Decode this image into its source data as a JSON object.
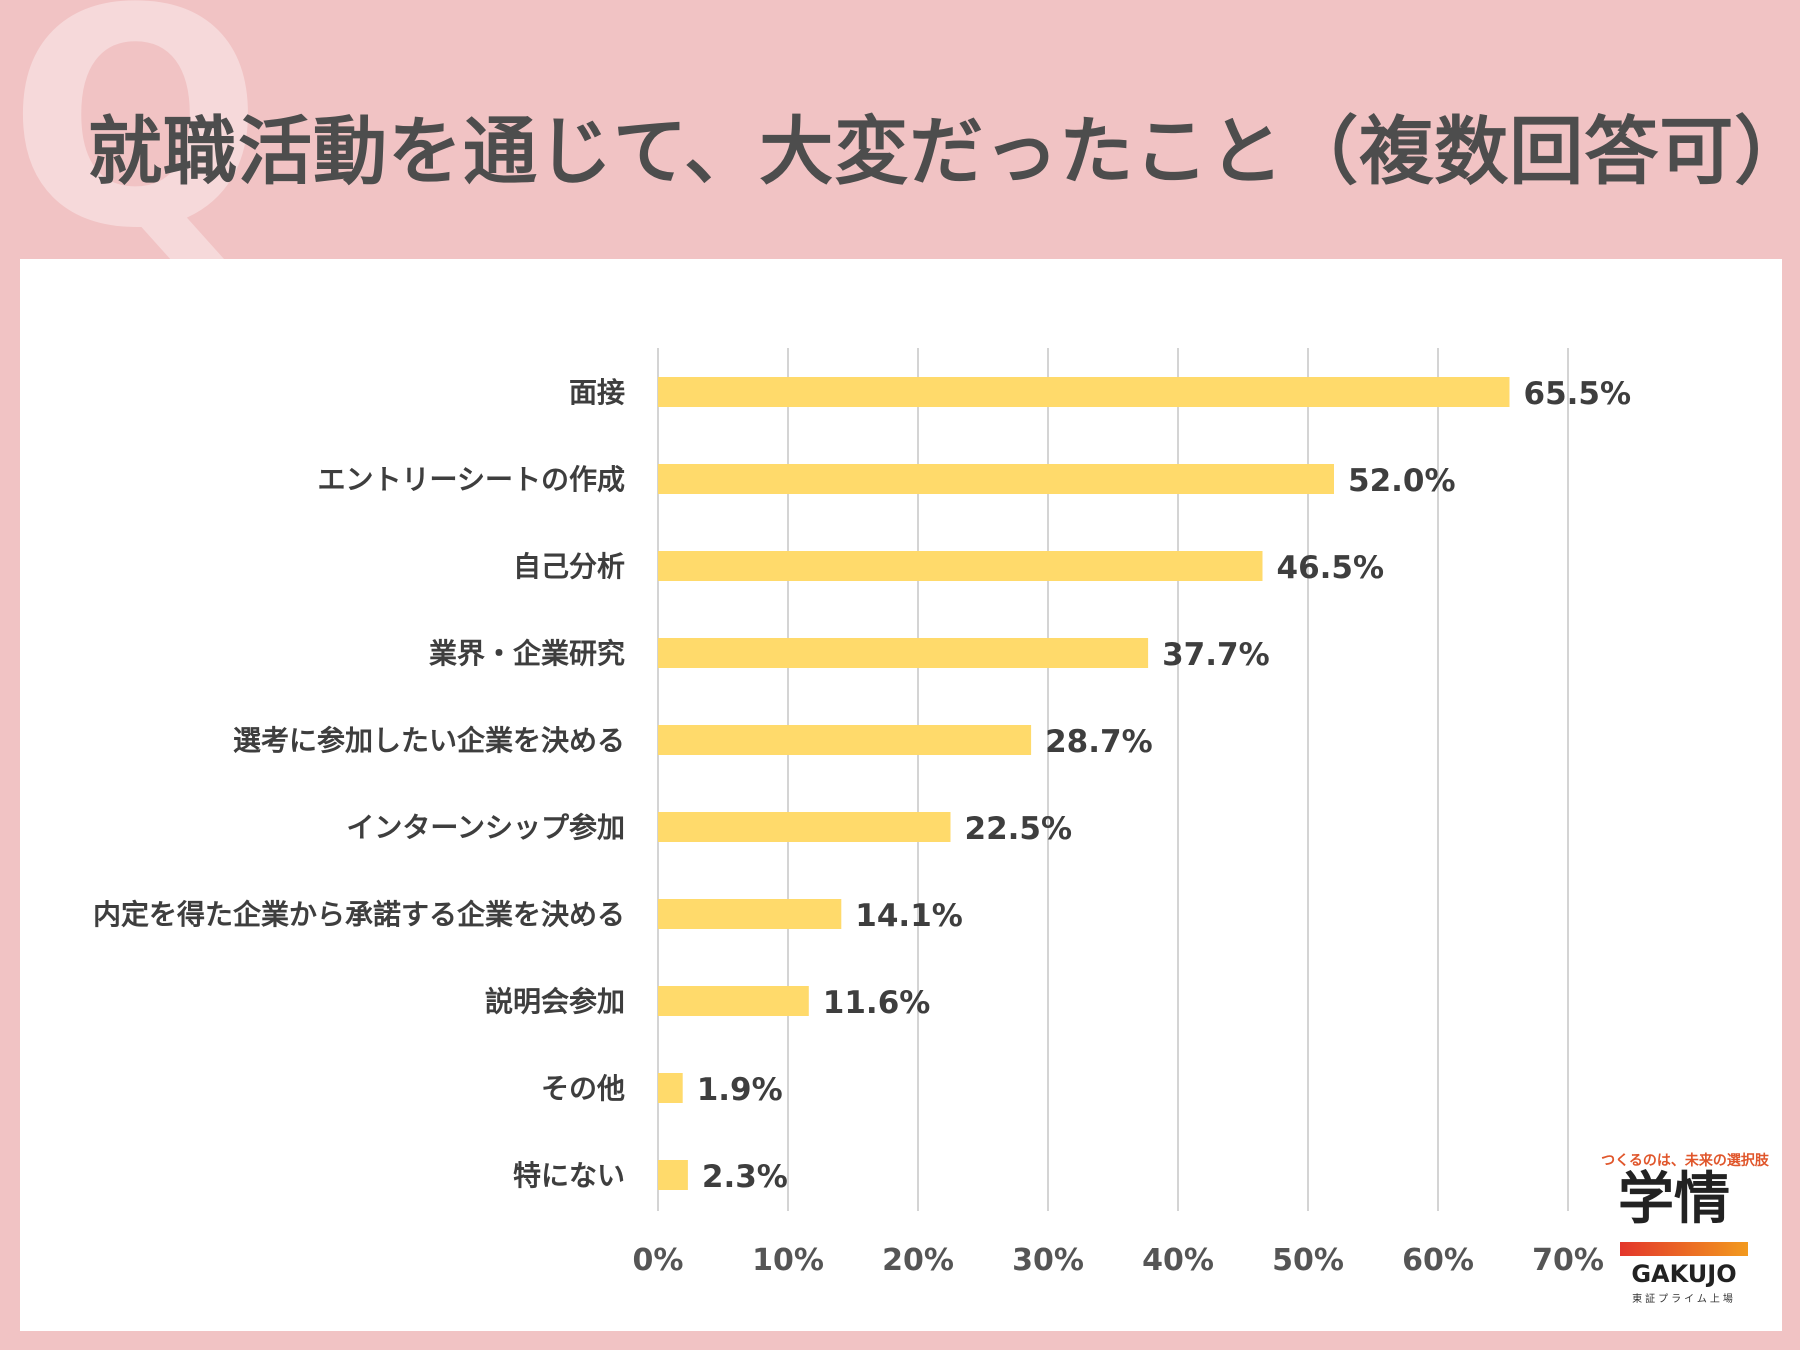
{
  "header": {
    "q_mark": "Q",
    "title": "就職活動を通じて、大変だったこと（複数回答可）"
  },
  "colors": {
    "background": "#f1c3c4",
    "bar": "#ffda6b",
    "grid": "#d4d4d4"
  },
  "chart_data": {
    "type": "bar",
    "orientation": "horizontal",
    "categories": [
      "面接",
      "エントリーシートの作成",
      "自己分析",
      "業界・企業研究",
      "選考に参加したい企業を決める",
      "インターンシップ参加",
      "内定を得た企業から承諾する企業を決める",
      "説明会参加",
      "その他",
      "特にない"
    ],
    "values": [
      65.5,
      52.0,
      46.5,
      37.7,
      28.7,
      22.5,
      14.1,
      11.6,
      1.9,
      2.3
    ],
    "value_labels": [
      "65.5%",
      "52.0%",
      "46.5%",
      "37.7%",
      "28.7%",
      "22.5%",
      "14.1%",
      "11.6%",
      "1.9%",
      "2.3%"
    ],
    "ticks": [
      0,
      10,
      20,
      30,
      40,
      50,
      60,
      70
    ],
    "tick_labels": [
      "0%",
      "10%",
      "20%",
      "30%",
      "40%",
      "50%",
      "60%",
      "70%"
    ],
    "xlim": [
      0,
      70
    ],
    "grid": true,
    "legend": "none"
  },
  "logo": {
    "tagline": "つくるのは、未来の選択肢",
    "kanji": "学情",
    "english": "GAKUJO",
    "sub": "東証プライム上場"
  }
}
